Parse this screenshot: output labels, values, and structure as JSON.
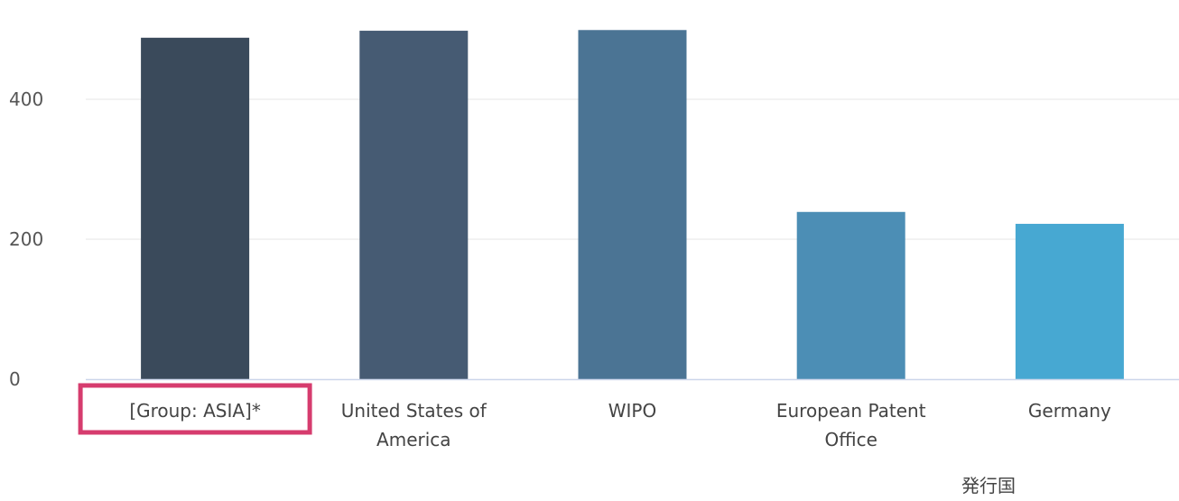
{
  "chart_data": {
    "type": "bar",
    "categories": [
      [
        "[Group: ASIA]*"
      ],
      [
        "United States of",
        "America"
      ],
      [
        "WIPO"
      ],
      [
        "European Patent",
        "Office"
      ],
      [
        "Germany"
      ]
    ],
    "values": [
      488,
      498,
      499,
      239,
      222
    ],
    "colors": [
      "#3a4a5b",
      "#465b73",
      "#4b7494",
      "#4c8eb5",
      "#47a8d2"
    ],
    "xlabel": "発行国",
    "ylabel": "",
    "ylim": [
      0,
      520
    ],
    "yticks": [
      0,
      200,
      400
    ],
    "grid": true,
    "highlighted_category": "[Group: ASIA]*",
    "highlight_color": "#d63c6e"
  }
}
